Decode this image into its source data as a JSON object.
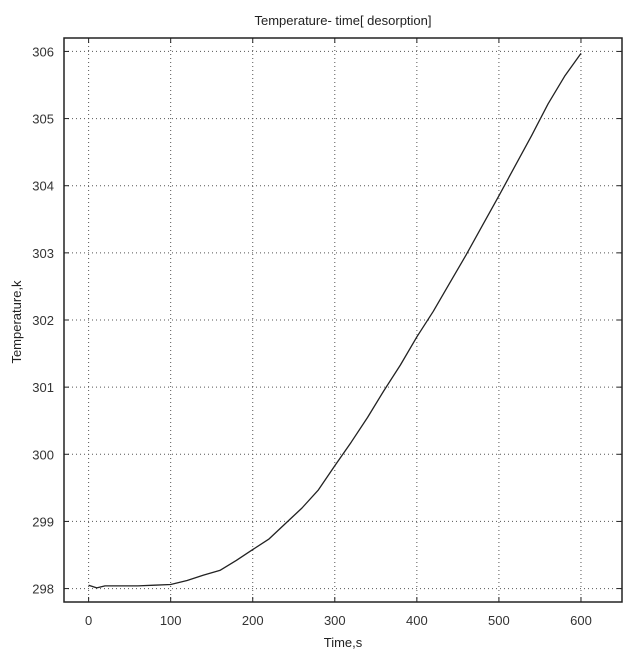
{
  "chart_data": {
    "type": "line",
    "title": "Temperature- time[ desorption]",
    "xlabel": "Time,s",
    "ylabel": "Temperature,k",
    "xlim": [
      -30,
      650
    ],
    "ylim": [
      297.8,
      306.2
    ],
    "xticks": [
      0,
      100,
      200,
      300,
      400,
      500,
      600
    ],
    "yticks": [
      298,
      299,
      300,
      301,
      302,
      303,
      304,
      305,
      306
    ],
    "grid": true,
    "grid_style": "dotted",
    "series": [
      {
        "color": "#222222",
        "x": [
          0,
          10,
          20,
          40,
          60,
          80,
          100,
          120,
          140,
          160,
          180,
          200,
          220,
          240,
          260,
          280,
          300,
          320,
          340,
          360,
          380,
          400,
          420,
          440,
          460,
          480,
          500,
          520,
          540,
          560,
          580,
          600
        ],
        "y": [
          298.05,
          298.01,
          298.04,
          298.04,
          298.04,
          298.05,
          298.06,
          298.12,
          298.2,
          298.27,
          298.42,
          298.58,
          298.74,
          298.97,
          299.2,
          299.47,
          299.83,
          300.18,
          300.55,
          300.95,
          301.33,
          301.75,
          302.13,
          302.55,
          302.97,
          303.41,
          303.85,
          304.3,
          304.75,
          305.22,
          305.63,
          305.97
        ]
      }
    ]
  }
}
